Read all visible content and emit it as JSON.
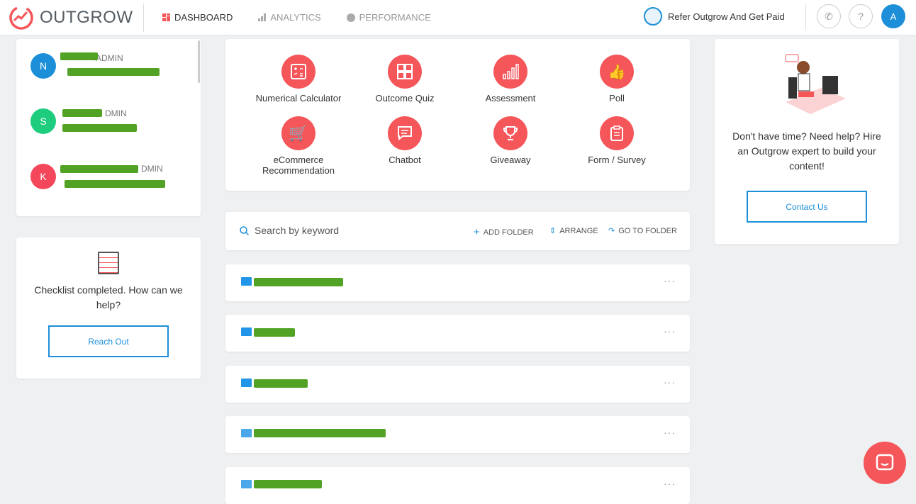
{
  "header": {
    "brand": "OUTGROW",
    "nav": [
      {
        "label": "DASHBOARD"
      },
      {
        "label": "ANALYTICS"
      },
      {
        "label": "PERFORMANCE"
      }
    ],
    "refer": "Refer Outgrow And Get Paid",
    "user_initial": "A",
    "phone_icon": "phone-icon",
    "help": "?"
  },
  "users": [
    {
      "initial": "N",
      "role": "ADMIN",
      "color": "#1c8fd8"
    },
    {
      "initial": "S",
      "role": "DMIN",
      "color": "#1dcc7c"
    },
    {
      "initial": "K",
      "role": "DMIN",
      "color": "#f5475b"
    }
  ],
  "checklist": {
    "text": "Checklist completed. How can we help?",
    "button": "Reach Out"
  },
  "content_types": [
    {
      "label": "Numerical Calculator"
    },
    {
      "label": "Outcome Quiz"
    },
    {
      "label": "Assessment"
    },
    {
      "label": "Poll"
    },
    {
      "label": "eCommerce Recommendation"
    },
    {
      "label": "Chatbot"
    },
    {
      "label": "Giveaway"
    },
    {
      "label": "Form / Survey"
    }
  ],
  "toolbar": {
    "search_placeholder": "Search by keyword",
    "add_folder": "ADD FOLDER",
    "arrange": "ARRANGE",
    "go_to_folder": "GO TO FOLDER"
  },
  "folders": [
    {
      "more": "···"
    },
    {
      "more": "···"
    },
    {
      "more": "···"
    },
    {
      "more": "···"
    },
    {
      "more": "···"
    }
  ],
  "help_card": {
    "text": "Don't have time? Need help? Hire an Outgrow expert to build your content!",
    "button": "Contact Us"
  },
  "colors": {
    "accent": "#f5565a",
    "blue": "#1c8fd8",
    "redaction": "#52a325"
  }
}
